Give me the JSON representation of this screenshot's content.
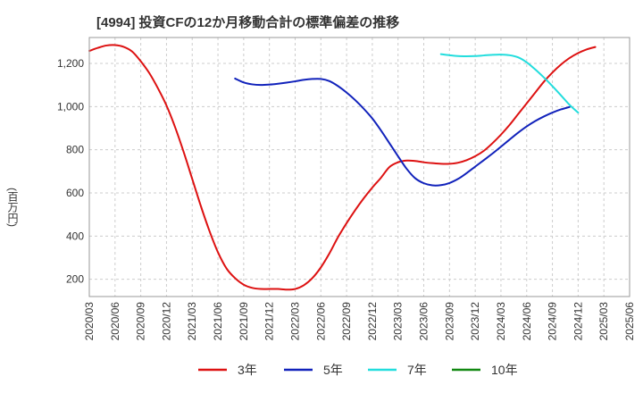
{
  "chart_data": {
    "type": "line",
    "title": "[4994]  投資CFの12か月移動合計の標準偏差の推移",
    "ylabel": "(百万円)",
    "xlabel": "",
    "ylim": [
      120,
      1320
    ],
    "yticks": [
      200,
      400,
      600,
      800,
      1000,
      1200
    ],
    "ytick_labels": [
      "200",
      "400",
      "600",
      "800",
      "1,000",
      "1,200"
    ],
    "xticks": [
      "2020/03",
      "2020/06",
      "2020/09",
      "2020/12",
      "2021/03",
      "2021/06",
      "2021/09",
      "2021/12",
      "2022/03",
      "2022/06",
      "2022/09",
      "2022/12",
      "2023/03",
      "2023/06",
      "2023/09",
      "2023/12",
      "2024/03",
      "2024/06",
      "2024/09",
      "2024/12",
      "2025/03",
      "2025/06"
    ],
    "grid": true,
    "legend_position": "bottom",
    "series": [
      {
        "name": "3年",
        "color": "#dd1111",
        "points": [
          [
            "2020/03",
            1258
          ],
          [
            "2020/04",
            1272
          ],
          [
            "2020/05",
            1283
          ],
          [
            "2020/06",
            1285
          ],
          [
            "2020/07",
            1277
          ],
          [
            "2020/08",
            1255
          ],
          [
            "2020/09",
            1210
          ],
          [
            "2020/10",
            1155
          ],
          [
            "2020/11",
            1085
          ],
          [
            "2020/12",
            1005
          ],
          [
            "2021/01",
            905
          ],
          [
            "2021/02",
            790
          ],
          [
            "2021/03",
            665
          ],
          [
            "2021/04",
            540
          ],
          [
            "2021/05",
            425
          ],
          [
            "2021/06",
            325
          ],
          [
            "2021/07",
            250
          ],
          [
            "2021/08",
            205
          ],
          [
            "2021/09",
            175
          ],
          [
            "2021/10",
            160
          ],
          [
            "2021/11",
            155
          ],
          [
            "2021/12",
            155
          ],
          [
            "2022/01",
            155
          ],
          [
            "2022/02",
            152
          ],
          [
            "2022/03",
            155
          ],
          [
            "2022/04",
            172
          ],
          [
            "2022/05",
            205
          ],
          [
            "2022/06",
            255
          ],
          [
            "2022/07",
            320
          ],
          [
            "2022/08",
            395
          ],
          [
            "2022/09",
            460
          ],
          [
            "2022/10",
            520
          ],
          [
            "2022/11",
            575
          ],
          [
            "2022/12",
            625
          ],
          [
            "2023/01",
            670
          ],
          [
            "2023/02",
            720
          ],
          [
            "2023/03",
            742
          ],
          [
            "2023/04",
            750
          ],
          [
            "2023/05",
            748
          ],
          [
            "2023/06",
            742
          ],
          [
            "2023/07",
            738
          ],
          [
            "2023/08",
            735
          ],
          [
            "2023/09",
            735
          ],
          [
            "2023/10",
            740
          ],
          [
            "2023/11",
            752
          ],
          [
            "2023/12",
            770
          ],
          [
            "2024/01",
            795
          ],
          [
            "2024/02",
            830
          ],
          [
            "2024/03",
            870
          ],
          [
            "2024/04",
            915
          ],
          [
            "2024/05",
            965
          ],
          [
            "2024/06",
            1015
          ],
          [
            "2024/07",
            1065
          ],
          [
            "2024/08",
            1115
          ],
          [
            "2024/09",
            1158
          ],
          [
            "2024/10",
            1195
          ],
          [
            "2024/11",
            1225
          ],
          [
            "2024/12",
            1248
          ],
          [
            "2025/01",
            1265
          ],
          [
            "2025/02",
            1276
          ]
        ]
      },
      {
        "name": "5年",
        "color": "#1122bb",
        "points": [
          [
            "2021/08",
            1130
          ],
          [
            "2021/09",
            1112
          ],
          [
            "2021/10",
            1103
          ],
          [
            "2021/11",
            1100
          ],
          [
            "2021/12",
            1102
          ],
          [
            "2022/01",
            1106
          ],
          [
            "2022/02",
            1111
          ],
          [
            "2022/03",
            1117
          ],
          [
            "2022/04",
            1124
          ],
          [
            "2022/05",
            1128
          ],
          [
            "2022/06",
            1128
          ],
          [
            "2022/07",
            1118
          ],
          [
            "2022/08",
            1095
          ],
          [
            "2022/09",
            1065
          ],
          [
            "2022/10",
            1030
          ],
          [
            "2022/11",
            990
          ],
          [
            "2022/12",
            945
          ],
          [
            "2023/01",
            890
          ],
          [
            "2023/02",
            830
          ],
          [
            "2023/03",
            770
          ],
          [
            "2023/04",
            712
          ],
          [
            "2023/05",
            668
          ],
          [
            "2023/06",
            645
          ],
          [
            "2023/07",
            635
          ],
          [
            "2023/08",
            636
          ],
          [
            "2023/09",
            646
          ],
          [
            "2023/10",
            665
          ],
          [
            "2023/11",
            692
          ],
          [
            "2023/12",
            722
          ],
          [
            "2024/01",
            752
          ],
          [
            "2024/02",
            782
          ],
          [
            "2024/03",
            814
          ],
          [
            "2024/04",
            847
          ],
          [
            "2024/05",
            879
          ],
          [
            "2024/06",
            908
          ],
          [
            "2024/07",
            933
          ],
          [
            "2024/08",
            954
          ],
          [
            "2024/09",
            972
          ],
          [
            "2024/10",
            987
          ],
          [
            "2024/11",
            998
          ]
        ]
      },
      {
        "name": "7年",
        "color": "#22dddd",
        "points": [
          [
            "2023/08",
            1243
          ],
          [
            "2023/09",
            1238
          ],
          [
            "2023/10",
            1234
          ],
          [
            "2023/11",
            1233
          ],
          [
            "2023/12",
            1234
          ],
          [
            "2024/01",
            1237
          ],
          [
            "2024/02",
            1240
          ],
          [
            "2024/03",
            1241
          ],
          [
            "2024/04",
            1238
          ],
          [
            "2024/05",
            1228
          ],
          [
            "2024/06",
            1205
          ],
          [
            "2024/07",
            1172
          ],
          [
            "2024/08",
            1135
          ],
          [
            "2024/09",
            1095
          ],
          [
            "2024/10",
            1052
          ],
          [
            "2024/11",
            1008
          ],
          [
            "2024/12",
            972
          ]
        ]
      },
      {
        "name": "10年",
        "color": "#118811",
        "points": []
      }
    ]
  }
}
